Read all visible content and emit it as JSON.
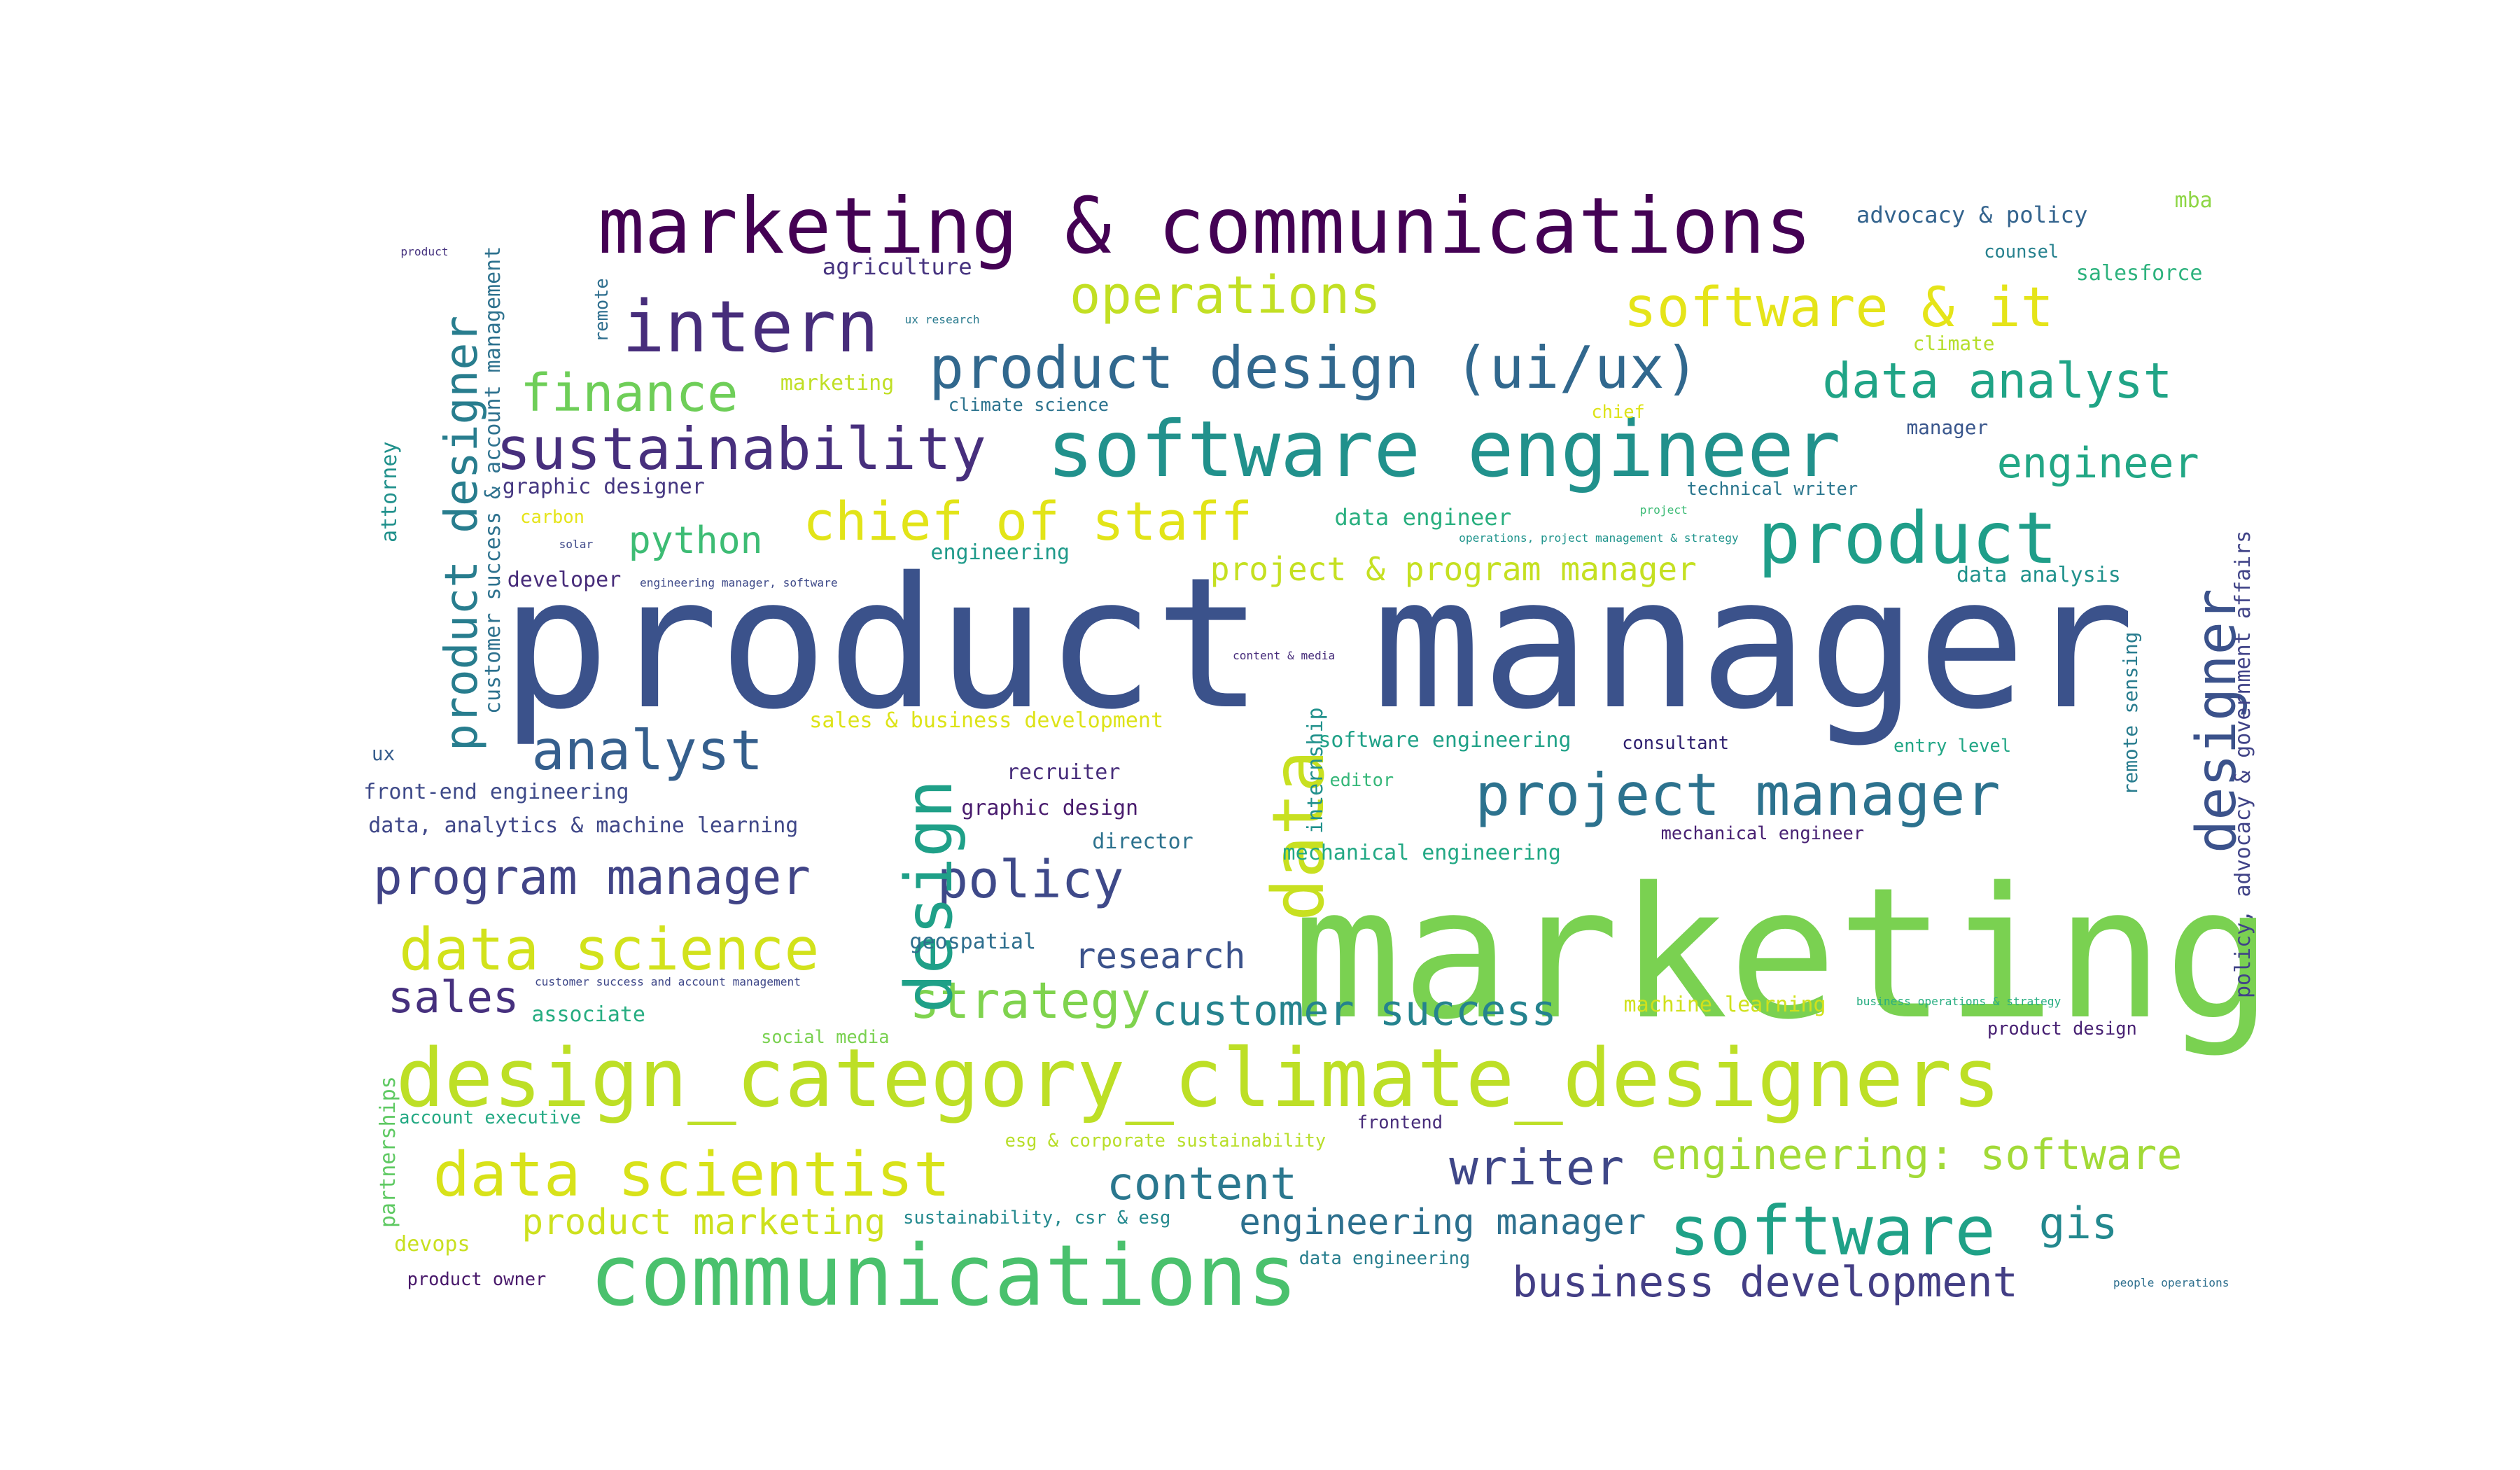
{
  "word_cloud": {
    "words": [
      {
        "text": "product manager",
        "color": "#3b528b"
      },
      {
        "text": "marketing",
        "color": "#7ad151"
      },
      {
        "text": "design_category_climate_designers",
        "color": "#bddf26"
      },
      {
        "text": "marketing & communications",
        "color": "#440154"
      },
      {
        "text": "software engineer",
        "color": "#21918c"
      },
      {
        "text": "communications",
        "color": "#4ac16d"
      },
      {
        "text": "product",
        "color": "#1f9e89"
      },
      {
        "text": "intern",
        "color": "#472d7b"
      },
      {
        "text": "product design (ui/ux)",
        "color": "#31688e"
      },
      {
        "text": "sustainability",
        "color": "#472f7d"
      },
      {
        "text": "data science",
        "color": "#d2e21b"
      },
      {
        "text": "data scientist",
        "color": "#d8e219"
      },
      {
        "text": "software",
        "color": "#1fa187"
      },
      {
        "text": "project manager",
        "color": "#2c728e"
      },
      {
        "text": "software & it",
        "color": "#e5e419"
      },
      {
        "text": "operations",
        "color": "#c2df23"
      },
      {
        "text": "chief of staff",
        "color": "#e2e418"
      },
      {
        "text": "data analyst",
        "color": "#20a486"
      },
      {
        "text": "finance",
        "color": "#6ece58"
      },
      {
        "text": "analyst",
        "color": "#355f8d"
      },
      {
        "text": "program manager",
        "color": "#414487"
      },
      {
        "text": "policy",
        "color": "#3e4989"
      },
      {
        "text": "engineering: software",
        "color": "#a2da37"
      },
      {
        "text": "strategy",
        "color": "#7fd34e"
      },
      {
        "text": "customer success",
        "color": "#25838e"
      },
      {
        "text": "business development",
        "color": "#433e85"
      },
      {
        "text": "content",
        "color": "#2a778e"
      },
      {
        "text": "writer",
        "color": "#3f4788"
      },
      {
        "text": "engineer",
        "color": "#22a785"
      },
      {
        "text": "sales",
        "color": "#46307e"
      },
      {
        "text": "product marketing",
        "color": "#cde11d"
      },
      {
        "text": "engineering manager",
        "color": "#2d708e"
      },
      {
        "text": "project & program manager",
        "color": "#c5e021"
      },
      {
        "text": "python",
        "color": "#3dbc74"
      },
      {
        "text": "research",
        "color": "#3b528b"
      },
      {
        "text": "gis",
        "color": "#23888e"
      },
      {
        "text": "data",
        "color": "#c8e020"
      },
      {
        "text": "design",
        "color": "#1fa088"
      },
      {
        "text": "designer",
        "color": "#3b528b"
      },
      {
        "text": "product designer",
        "color": "#287d8e"
      },
      {
        "text": "customer success & account management",
        "color": "#2d718e"
      },
      {
        "text": "policy, advocacy & government affairs",
        "color": "#404387"
      },
      {
        "text": "advocacy & policy",
        "color": "#33638d"
      },
      {
        "text": "mba",
        "color": "#8ed645"
      },
      {
        "text": "counsel",
        "color": "#26818e"
      },
      {
        "text": "salesforce",
        "color": "#2db27d"
      },
      {
        "text": "agriculture",
        "color": "#46337f"
      },
      {
        "text": "climate",
        "color": "#b5de2b"
      },
      {
        "text": "manager",
        "color": "#39568c"
      },
      {
        "text": "chief",
        "color": "#dde318"
      },
      {
        "text": "technical writer",
        "color": "#2a768e"
      },
      {
        "text": "project",
        "color": "#3bbb75"
      },
      {
        "text": "operations, project management & strategy",
        "color": "#1f948c"
      },
      {
        "text": "data analysis",
        "color": "#20928c"
      },
      {
        "text": "data engineer",
        "color": "#29af7f"
      },
      {
        "text": "engineering",
        "color": "#1f9a8a"
      },
      {
        "text": "marketing",
        "color": "#c0df25"
      },
      {
        "text": "climate science",
        "color": "#2c738e"
      },
      {
        "text": "graphic designer",
        "color": "#453781"
      },
      {
        "text": "carbon",
        "color": "#e5e419"
      },
      {
        "text": "solar",
        "color": "#3e4989"
      },
      {
        "text": "developer",
        "color": "#472c7a"
      },
      {
        "text": "engineering manager, software",
        "color": "#3e4a89"
      },
      {
        "text": "remote",
        "color": "#2e6e8e"
      },
      {
        "text": "ux research",
        "color": "#297a8e"
      },
      {
        "text": "product",
        "color": "#46337f"
      },
      {
        "text": "attorney",
        "color": "#21918c"
      },
      {
        "text": "ux",
        "color": "#365d8d"
      },
      {
        "text": "front-end engineering",
        "color": "#3e4a89"
      },
      {
        "text": "data, analytics & machine learning",
        "color": "#3f4788"
      },
      {
        "text": "sales & business development",
        "color": "#dde318"
      },
      {
        "text": "recruiter",
        "color": "#472d7b"
      },
      {
        "text": "graphic design",
        "color": "#481b6d"
      },
      {
        "text": "director",
        "color": "#2c728e"
      },
      {
        "text": "internship",
        "color": "#21918c"
      },
      {
        "text": "software engineering",
        "color": "#1fa187"
      },
      {
        "text": "consultant",
        "color": "#2d1e6e"
      },
      {
        "text": "entry level",
        "color": "#21a685"
      },
      {
        "text": "editor",
        "color": "#35b779"
      },
      {
        "text": "mechanical engineering",
        "color": "#22a884"
      },
      {
        "text": "mechanical engineer",
        "color": "#482173"
      },
      {
        "text": "content & media",
        "color": "#472d7b"
      },
      {
        "text": "remote sensing",
        "color": "#287c8e"
      },
      {
        "text": "geospatial",
        "color": "#2e6e8e"
      },
      {
        "text": "customer success and account management",
        "color": "#3f4889"
      },
      {
        "text": "associate",
        "color": "#26ad81"
      },
      {
        "text": "social media",
        "color": "#7ad151"
      },
      {
        "text": "machine learning",
        "color": "#d0e11c"
      },
      {
        "text": "business operations & strategy",
        "color": "#27ad81"
      },
      {
        "text": "product design",
        "color": "#482173"
      },
      {
        "text": "partnerships",
        "color": "#5ec962"
      },
      {
        "text": "account executive",
        "color": "#23a983"
      },
      {
        "text": "frontend",
        "color": "#472c7a"
      },
      {
        "text": "esg & corporate sustainability",
        "color": "#b8de29"
      },
      {
        "text": "sustainability, csr & esg",
        "color": "#23898e"
      },
      {
        "text": "devops",
        "color": "#c8e020"
      },
      {
        "text": "data engineering",
        "color": "#277e8e"
      },
      {
        "text": "product owner",
        "color": "#48186a"
      },
      {
        "text": "people operations",
        "color": "#2e6f8e"
      }
    ]
  }
}
